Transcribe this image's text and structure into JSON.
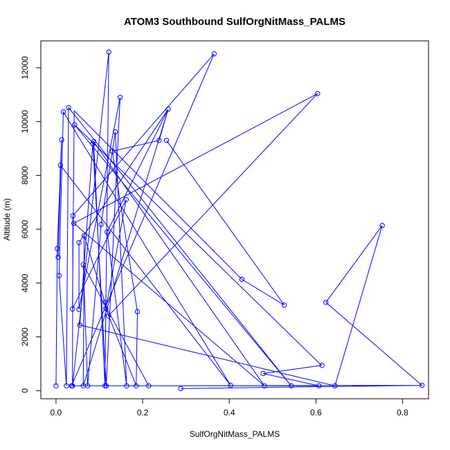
{
  "chart_data": {
    "type": "line",
    "title": "ATOM3 Southbound SulfOrgNitMass_PALMS",
    "xlabel": "SulfOrgNitMass_PALMS",
    "ylabel": "Altitude (m)",
    "xlim": [
      -0.035,
      0.86
    ],
    "ylim": [
      -300,
      13000
    ],
    "x_ticks": [
      0.0,
      0.2,
      0.4,
      0.6,
      0.8
    ],
    "x_tick_labels": [
      "0.0",
      "0.2",
      "0.4",
      "0.6",
      "0.8"
    ],
    "y_ticks": [
      0,
      2000,
      4000,
      6000,
      8000,
      10000,
      12000
    ],
    "y_tick_labels": [
      "0",
      "2000",
      "4000",
      "6000",
      "8000",
      "10000",
      "12000"
    ],
    "grid": false,
    "legend": "none",
    "series_color": "#0000ff",
    "series": [
      {
        "markers": "open-circle",
        "points": [
          [
            0.0,
            180
          ],
          [
            0.003,
            5280
          ],
          [
            0.005,
            4960
          ],
          [
            0.007,
            4280
          ],
          [
            0.013,
            9320
          ],
          [
            0.01,
            8380
          ],
          [
            0.017,
            10360
          ],
          [
            0.039,
            6500
          ],
          [
            0.041,
            6220
          ],
          [
            0.053,
            5500
          ],
          [
            0.063,
            4680
          ],
          [
            0.065,
            5760
          ],
          [
            0.029,
            10520
          ],
          [
            0.043,
            9880
          ],
          [
            0.087,
            9260
          ],
          [
            0.085,
            9180
          ],
          [
            0.104,
            6180
          ],
          [
            0.113,
            3280
          ],
          [
            0.115,
            3060
          ],
          [
            0.118,
            5900
          ],
          [
            0.121,
            2780
          ],
          [
            0.122,
            12580
          ],
          [
            0.13,
            8900
          ],
          [
            0.137,
            9620
          ],
          [
            0.148,
            10900
          ],
          [
            0.162,
            7100
          ],
          [
            0.188,
            2940
          ],
          [
            0.038,
            3040
          ],
          [
            0.053,
            3020
          ],
          [
            0.055,
            2440
          ],
          [
            0.024,
            180
          ],
          [
            0.036,
            180
          ],
          [
            0.038,
            180
          ],
          [
            0.063,
            180
          ],
          [
            0.073,
            180
          ],
          [
            0.113,
            180
          ],
          [
            0.116,
            180
          ],
          [
            0.163,
            180
          ],
          [
            0.185,
            180
          ],
          [
            0.214,
            180
          ],
          [
            0.238,
            9300
          ],
          [
            0.255,
            9300
          ],
          [
            0.259,
            10460
          ],
          [
            0.288,
            80
          ],
          [
            0.365,
            12520
          ],
          [
            0.403,
            200
          ],
          [
            0.429,
            4140
          ],
          [
            0.478,
            640
          ],
          [
            0.481,
            180
          ],
          [
            0.527,
            3180
          ],
          [
            0.543,
            180
          ],
          [
            0.604,
            11040
          ],
          [
            0.607,
            180
          ],
          [
            0.614,
            940
          ],
          [
            0.623,
            3280
          ],
          [
            0.644,
            180
          ],
          [
            0.753,
            6140
          ],
          [
            0.845,
            200
          ]
        ],
        "path": [
          [
            0.0,
            180
          ],
          [
            0.003,
            5280
          ],
          [
            0.013,
            9320
          ],
          [
            0.005,
            4960
          ],
          [
            0.01,
            8380
          ],
          [
            0.403,
            200
          ],
          [
            0.017,
            10360
          ],
          [
            0.007,
            4280
          ],
          [
            0.024,
            180
          ],
          [
            0.029,
            10520
          ],
          [
            0.543,
            180
          ],
          [
            0.043,
            9880
          ],
          [
            0.613,
            940
          ],
          [
            0.478,
            640
          ],
          [
            0.607,
            180
          ],
          [
            0.036,
            180
          ],
          [
            0.365,
            12520
          ],
          [
            0.039,
            6500
          ],
          [
            0.038,
            180
          ],
          [
            0.122,
            12580
          ],
          [
            0.113,
            180
          ],
          [
            0.087,
            9260
          ],
          [
            0.481,
            180
          ],
          [
            0.041,
            6220
          ],
          [
            0.604,
            11040
          ],
          [
            0.121,
            2780
          ],
          [
            0.113,
            3280
          ],
          [
            0.065,
            5760
          ],
          [
            0.063,
            180
          ],
          [
            0.259,
            10460
          ],
          [
            0.053,
            5500
          ],
          [
            0.053,
            3020
          ],
          [
            0.148,
            10900
          ],
          [
            0.116,
            180
          ],
          [
            0.085,
            9180
          ],
          [
            0.055,
            2440
          ],
          [
            0.644,
            180
          ],
          [
            0.753,
            6140
          ],
          [
            0.623,
            3280
          ],
          [
            0.845,
            200
          ],
          [
            0.288,
            80
          ],
          [
            0.844,
            200
          ],
          [
            0.214,
            180
          ],
          [
            0.063,
            4680
          ],
          [
            0.073,
            180
          ],
          [
            0.104,
            6180
          ],
          [
            0.137,
            9620
          ],
          [
            0.163,
            180
          ],
          [
            0.118,
            5900
          ],
          [
            0.259,
            10460
          ],
          [
            0.238,
            9300
          ],
          [
            0.13,
            8900
          ],
          [
            0.188,
            2940
          ],
          [
            0.185,
            180
          ],
          [
            0.115,
            3060
          ],
          [
            0.162,
            7100
          ],
          [
            0.038,
            3040
          ],
          [
            0.042,
            10400
          ],
          [
            0.429,
            4140
          ],
          [
            0.527,
            3180
          ],
          [
            0.255,
            9300
          ]
        ]
      }
    ]
  }
}
